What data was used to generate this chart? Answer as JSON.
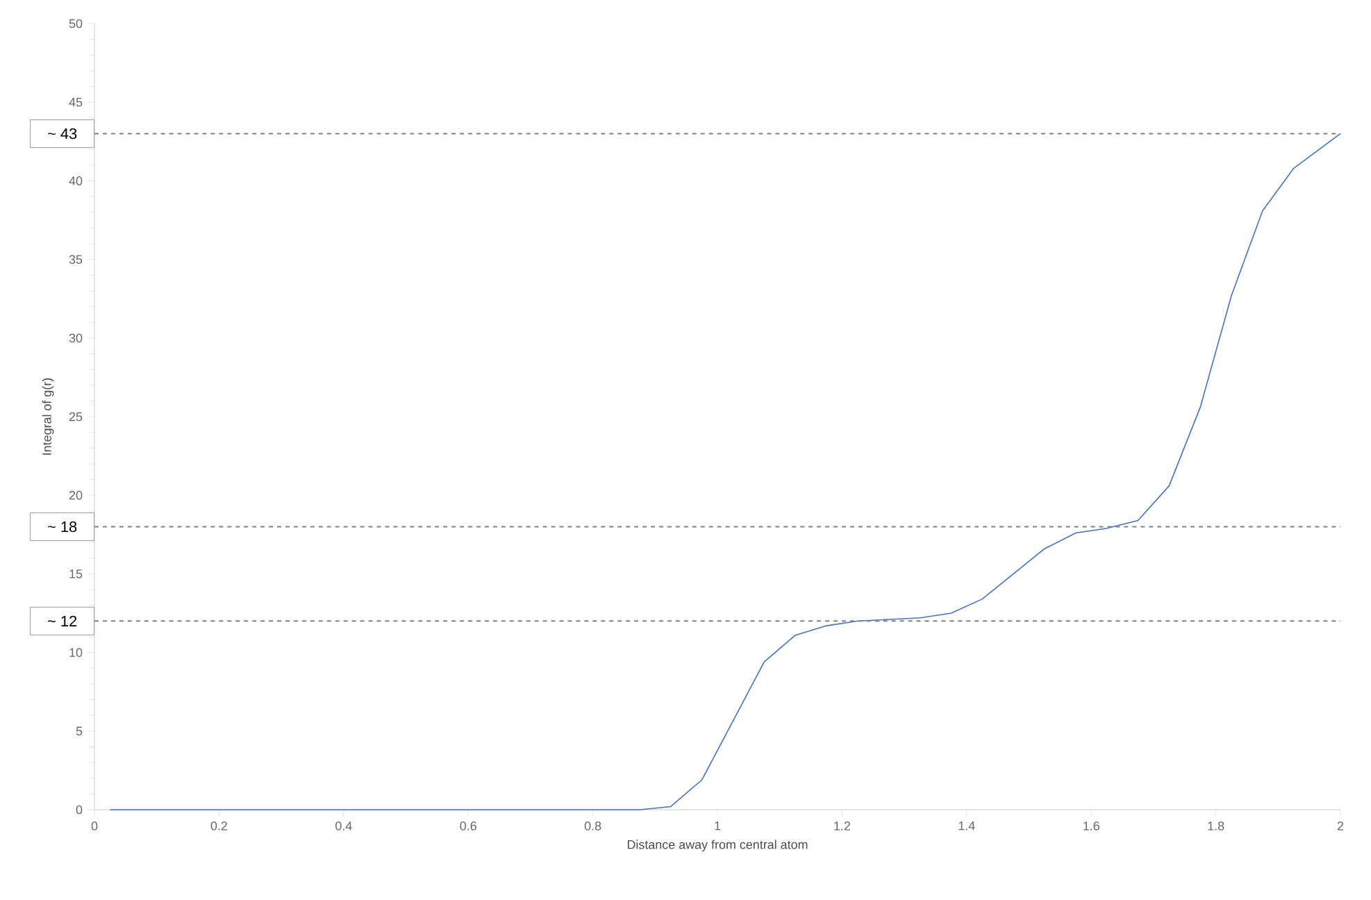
{
  "chart_data": {
    "type": "line",
    "xlabel": "Distance away from central atom",
    "ylabel": "Integral of g(r)",
    "x": [
      0.025,
      0.875,
      0.925,
      0.975,
      1.075,
      1.125,
      1.175,
      1.225,
      1.275,
      1.325,
      1.375,
      1.425,
      1.475,
      1.525,
      1.575,
      1.625,
      1.675,
      1.725,
      1.775,
      1.825,
      1.875,
      1.925,
      2.0
    ],
    "series": [
      {
        "color": "#4472c4",
        "values": [
          0,
          0,
          0.2,
          1.9,
          9.4,
          11.1,
          11.7,
          12.0,
          12.1,
          12.2,
          12.5,
          13.4,
          15.0,
          16.6,
          17.6,
          17.9,
          18.4,
          20.6,
          25.6,
          32.7,
          38.1,
          40.8,
          43.0
        ]
      }
    ],
    "xlim": [
      0,
      2
    ],
    "ylim": [
      0,
      50
    ],
    "xticks": [
      0,
      0.2,
      0.4,
      0.6,
      0.8,
      1,
      1.2,
      1.4,
      1.6,
      1.8,
      2
    ],
    "yticks": [
      0,
      5,
      10,
      15,
      20,
      25,
      30,
      35,
      40,
      45,
      50
    ],
    "ref_lines": [
      {
        "axis": "y",
        "value": 43,
        "label": "~ 43",
        "color": "#808080",
        "line_style": "dashed"
      },
      {
        "axis": "y",
        "value": 18,
        "label": "~ 18",
        "color": "#808080",
        "line_style": "dashed"
      },
      {
        "axis": "y",
        "value": 12,
        "label": "~ 12",
        "color": "#808080",
        "line_style": "dashed"
      }
    ],
    "grid": false,
    "marker": "none",
    "line_style": "solid"
  }
}
